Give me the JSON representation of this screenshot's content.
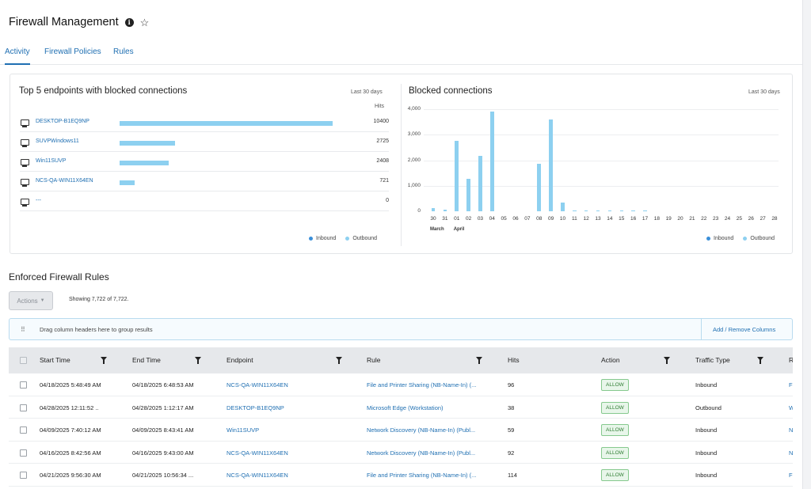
{
  "page": {
    "title": "Firewall Management",
    "info_icon": "info-icon",
    "favorite_icon": "star-icon"
  },
  "tabs": [
    {
      "label": "Activity",
      "active": true
    },
    {
      "label": "Firewall Policies",
      "active": false
    },
    {
      "label": "Rules",
      "active": false
    }
  ],
  "top_endpoints": {
    "title": "Top 5 endpoints with blocked connections",
    "period": "Last 30 days",
    "hits_header": "Hits",
    "max": 10400,
    "rows": [
      {
        "name": "DESKTOP-B1EQ9NP",
        "value": 10400,
        "value_label": "10400"
      },
      {
        "name": "SUVPWindows11",
        "value": 2725,
        "value_label": "2725"
      },
      {
        "name": "Win11SUVP",
        "value": 2408,
        "value_label": "2408"
      },
      {
        "name": "NCS-QA-WIN11X64EN",
        "value": 721,
        "value_label": "721"
      },
      {
        "name": "---",
        "value": 0,
        "value_label": "0"
      }
    ],
    "legend": [
      {
        "label": "Inbound",
        "color": "#3b8fd9"
      },
      {
        "label": "Outbound",
        "color": "#8dd0f0"
      }
    ]
  },
  "blocked_connections": {
    "title": "Blocked connections",
    "period": "Last 30 days",
    "legend": [
      {
        "label": "Inbound",
        "color": "#3b8fd9"
      },
      {
        "label": "Outbound",
        "color": "#8dd0f0"
      }
    ],
    "month_labels": [
      {
        "label": "March",
        "index": 0
      },
      {
        "label": "April",
        "index": 2
      }
    ]
  },
  "chart_data": {
    "type": "bar",
    "title": "Blocked connections",
    "xlabel": "",
    "ylabel": "",
    "ylim": [
      0,
      4000
    ],
    "yticks": [
      0,
      1000,
      2000,
      3000,
      4000
    ],
    "ytick_labels": [
      "0",
      "1,000",
      "2,000",
      "3,000",
      "4,000"
    ],
    "categories": [
      "30",
      "31",
      "01",
      "02",
      "03",
      "04",
      "05",
      "06",
      "07",
      "08",
      "09",
      "10",
      "11",
      "12",
      "13",
      "14",
      "15",
      "16",
      "17",
      "18",
      "19",
      "20",
      "21",
      "22",
      "23",
      "24",
      "25",
      "26",
      "27",
      "28"
    ],
    "series": [
      {
        "name": "Outbound",
        "color": "#8dd0f0",
        "values": [
          120,
          60,
          2750,
          1270,
          2170,
          3910,
          0,
          0,
          0,
          1870,
          3610,
          350,
          30,
          20,
          20,
          40,
          30,
          40,
          30,
          0,
          0,
          0,
          0,
          0,
          0,
          0,
          0,
          0,
          0,
          0
        ]
      }
    ],
    "legend_position": "bottom-right",
    "grid": true
  },
  "rules_section": {
    "title": "Enforced Firewall Rules",
    "actions_label": "Actions",
    "showing": "Showing 7,722 of 7,722.",
    "group_hint": "Drag column headers here to group results",
    "add_remove_columns": "Add / Remove Columns"
  },
  "table": {
    "columns": [
      "Start Time",
      "End Time",
      "Endpoint",
      "Rule",
      "Hits",
      "Action",
      "Traffic Type",
      "R"
    ],
    "rows": [
      {
        "start": "04/18/2025 5:48:49 AM",
        "end": "04/18/2025 6:48:53 AM",
        "endpoint": "NCS-QA-WIN11X64EN",
        "rule": "File and Printer Sharing (NB-Name-In) (...",
        "hits": "96",
        "action": "ALLOW",
        "traffic": "Inbound",
        "extra": "F"
      },
      {
        "start": "04/28/2025 12:11:52 ..",
        "end": "04/28/2025 1:12:17 AM",
        "endpoint": "DESKTOP-B1EQ9NP",
        "rule": "Microsoft Edge (Workstation)",
        "hits": "38",
        "action": "ALLOW",
        "traffic": "Outbound",
        "extra": "W"
      },
      {
        "start": "04/09/2025 7:40:12 AM",
        "end": "04/09/2025 8:43:41 AM",
        "endpoint": "Win11SUVP",
        "rule": "Network Discovery (NB-Name-In) (Publ...",
        "hits": "59",
        "action": "ALLOW",
        "traffic": "Inbound",
        "extra": "N"
      },
      {
        "start": "04/16/2025 8:42:56 AM",
        "end": "04/16/2025 9:43:00 AM",
        "endpoint": "NCS-QA-WIN11X64EN",
        "rule": "Network Discovery (NB-Name-In) (Publ...",
        "hits": "92",
        "action": "ALLOW",
        "traffic": "Inbound",
        "extra": "N"
      },
      {
        "start": "04/21/2025 9:56:30 AM",
        "end": "04/21/2025 10:56:34 ...",
        "endpoint": "NCS-QA-WIN11X64EN",
        "rule": "File and Printer Sharing (NB-Name-In) (...",
        "hits": "114",
        "action": "ALLOW",
        "traffic": "Inbound",
        "extra": "F"
      }
    ]
  }
}
